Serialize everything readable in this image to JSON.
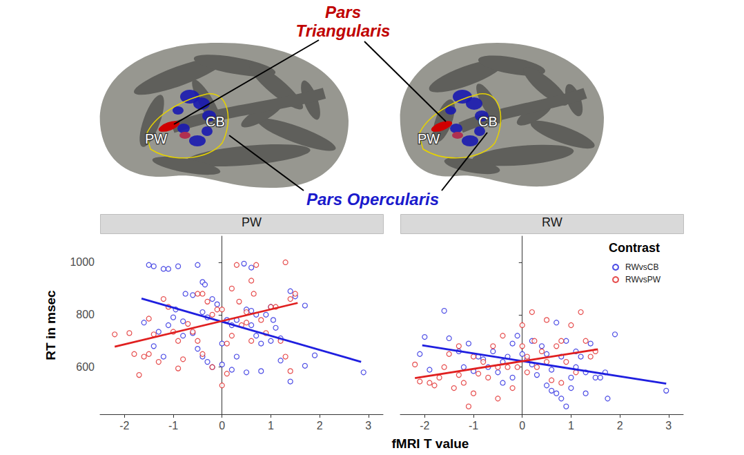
{
  "chart_data": [
    {
      "type": "scatter",
      "title": "PW",
      "ylabel": "RT in msec",
      "xlim": [
        -2.5,
        3.3
      ],
      "xticks": [
        -2,
        -1,
        0,
        1,
        2,
        3
      ],
      "ylim": [
        420,
        1100
      ],
      "yticks": [
        600,
        800,
        1000
      ],
      "grid": false,
      "series": [
        {
          "name": "RWvsCB",
          "color": "#1f1fdf",
          "marker": "open_circle",
          "x": [
            -1.5,
            -1.4,
            -1.2,
            -1.1,
            -0.9,
            -0.5,
            0.45,
            0.6,
            1.4,
            1.5,
            1.7,
            -0.4,
            -0.35,
            -0.6,
            -0.75,
            -0.95,
            -1.0,
            -0.8,
            -1.1,
            -1.6,
            -1.4,
            -1.2,
            -0.2,
            -0.1,
            0.1,
            0.2,
            0.3,
            -0.3,
            -0.4,
            0.5,
            0.6,
            0.7,
            0.9,
            1.0,
            1.05,
            1.1,
            1.2,
            1.0,
            0.8,
            0.6,
            0.7,
            -0.5,
            -0.4,
            -0.3,
            -0.2,
            0.0,
            0.2,
            0.5,
            0.8,
            1.2,
            1.4,
            1.7,
            1.9,
            2.9,
            -0.6,
            -0.8,
            -1.3,
            0.3,
            0.0
          ],
          "values": [
            990,
            985,
            975,
            975,
            985,
            990,
            995,
            980,
            890,
            870,
            835,
            925,
            915,
            875,
            880,
            820,
            790,
            775,
            760,
            770,
            680,
            640,
            860,
            840,
            780,
            760,
            780,
            790,
            810,
            820,
            815,
            800,
            800,
            830,
            780,
            750,
            710,
            700,
            690,
            760,
            720,
            670,
            640,
            620,
            600,
            610,
            590,
            580,
            585,
            625,
            545,
            605,
            645,
            580,
            730,
            720,
            735,
            640,
            690
          ],
          "fit": {
            "x": [
              -1.65,
              2.85
            ],
            "values": [
              862,
              620
            ]
          }
        },
        {
          "name": "RWvsPW",
          "color": "#e02020",
          "marker": "open_circle",
          "x": [
            -2.2,
            -1.9,
            -1.8,
            -1.7,
            -1.6,
            -1.5,
            -1.5,
            -1.4,
            -1.2,
            -1.1,
            -1.0,
            -0.9,
            -0.9,
            -0.8,
            -0.7,
            -0.6,
            -0.5,
            -0.5,
            -0.4,
            -0.3,
            -0.2,
            -0.1,
            0.0,
            0.0,
            0.1,
            0.2,
            0.2,
            0.3,
            0.35,
            0.4,
            0.5,
            0.5,
            0.6,
            0.65,
            0.7,
            0.8,
            0.9,
            1.0,
            1.1,
            1.2,
            1.3,
            1.3,
            1.4,
            1.5,
            1.4,
            -0.4,
            -0.2,
            0.1,
            -1.3,
            0.6
          ],
          "values": [
            725,
            730,
            650,
            570,
            640,
            650,
            785,
            725,
            860,
            830,
            735,
            700,
            595,
            630,
            765,
            735,
            700,
            880,
            880,
            850,
            800,
            820,
            820,
            530,
            575,
            720,
            900,
            990,
            850,
            760,
            770,
            810,
            930,
            880,
            990,
            780,
            730,
            830,
            830,
            700,
            1000,
            640,
            585,
            880,
            860,
            650,
            600,
            690,
            620,
            700
          ],
          "fit": {
            "x": [
              -2.2,
              1.55
            ],
            "values": [
              678,
              845
            ]
          }
        }
      ]
    },
    {
      "type": "scatter",
      "title": "RW",
      "tick_labels": "x",
      "xlim": [
        -2.5,
        3.3
      ],
      "xticks": [
        -2,
        -1,
        0,
        1,
        2,
        3
      ],
      "ylim": [
        420,
        1100
      ],
      "yticks": [
        600,
        800,
        1000
      ],
      "grid": false,
      "legend": "top-right",
      "legend_title": "Contrast",
      "series": [
        {
          "name": "RWvsCB",
          "color": "#1f1fdf",
          "marker": "open_circle",
          "x": [
            -2.1,
            -2.0,
            -1.9,
            -1.6,
            -1.5,
            -1.3,
            -1.2,
            -1.1,
            -1.0,
            -0.9,
            -0.8,
            -0.7,
            -0.6,
            -0.5,
            -0.4,
            -0.4,
            -0.3,
            -0.2,
            -0.1,
            0.0,
            0.1,
            0.2,
            0.3,
            0.4,
            0.5,
            0.6,
            0.6,
            0.7,
            0.8,
            0.8,
            0.9,
            0.9,
            1.0,
            1.0,
            1.1,
            1.1,
            1.2,
            1.3,
            1.3,
            1.4,
            1.5,
            1.6,
            1.7,
            1.75,
            1.9,
            2.95,
            0.7,
            0.5,
            -0.2,
            0.2
          ],
          "values": [
            650,
            715,
            590,
            815,
            710,
            660,
            600,
            690,
            585,
            640,
            630,
            600,
            660,
            580,
            620,
            540,
            640,
            690,
            720,
            650,
            630,
            610,
            570,
            680,
            650,
            590,
            510,
            500,
            480,
            640,
            450,
            700,
            560,
            520,
            600,
            660,
            640,
            580,
            500,
            690,
            560,
            560,
            580,
            480,
            725,
            510,
            770,
            530,
            560,
            700
          ],
          "fit": {
            "x": [
              -2.05,
              2.95
            ],
            "values": [
              683,
              537
            ]
          }
        },
        {
          "name": "RWvsPW",
          "color": "#e02020",
          "marker": "open_circle",
          "x": [
            -2.2,
            -2.1,
            -1.9,
            -1.8,
            -1.7,
            -1.6,
            -1.5,
            -1.4,
            -1.3,
            -1.2,
            -1.1,
            -1.0,
            -1.0,
            -0.9,
            -0.8,
            -0.7,
            -0.6,
            -0.5,
            -0.4,
            -0.3,
            -0.2,
            -0.1,
            0.0,
            0.0,
            0.1,
            0.2,
            0.25,
            0.3,
            0.4,
            0.5,
            0.5,
            0.6,
            0.7,
            0.8,
            0.9,
            1.0,
            1.1,
            1.2,
            1.3,
            1.4,
            1.5,
            -0.5,
            0.1,
            -1.3,
            0.8
          ],
          "values": [
            610,
            545,
            540,
            530,
            560,
            600,
            650,
            520,
            570,
            540,
            450,
            500,
            640,
            575,
            620,
            560,
            680,
            600,
            720,
            600,
            520,
            600,
            760,
            680,
            640,
            810,
            700,
            600,
            660,
            620,
            780,
            550,
            680,
            700,
            620,
            760,
            580,
            810,
            700,
            640,
            660,
            480,
            580,
            680,
            540
          ],
          "fit": {
            "x": [
              -2.2,
              1.55
            ],
            "values": [
              558,
              668
            ]
          }
        }
      ]
    }
  ],
  "xlabel": "fMRI T value",
  "brain": {
    "triangularis": {
      "text": "Pars Triangularis",
      "color": "#c00000"
    },
    "opercularis": {
      "text": "Pars Opercularis",
      "color": "#1a1acc"
    },
    "region_labels": [
      "PW",
      "CB"
    ]
  }
}
